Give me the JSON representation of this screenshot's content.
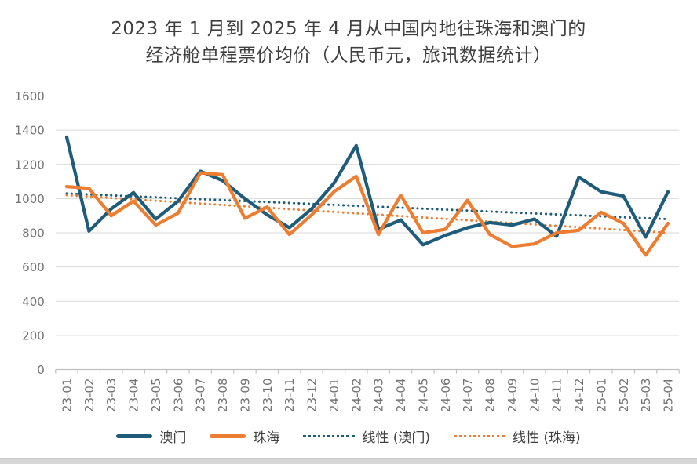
{
  "title": {
    "line1": "2023 年 1 月到 2025 年 4 月从中国内地往珠海和澳门的",
    "line2": "经济舱单程票价均价（人民币元，旅讯数据统计）"
  },
  "colors": {
    "macau": "#1E5C7A",
    "zhuhai": "#ED7D31",
    "grid": "#D9D9D9",
    "axis": "#BFBFBF",
    "axis_text": "#737373",
    "title_text": "#3F3F3F"
  },
  "chart_data": {
    "type": "line",
    "title": "2023 年 1 月到 2025 年 4 月从中国内地往珠海和澳门的经济舱单程票价均价（人民币元，旅讯数据统计）",
    "xlabel": "",
    "ylabel": "",
    "ylim": [
      0,
      1600
    ],
    "ytick_step": 200,
    "yticks": [
      0,
      200,
      400,
      600,
      800,
      1000,
      1200,
      1400,
      1600
    ],
    "grid": true,
    "legend_position": "bottom",
    "categories": [
      "23-01",
      "23-02",
      "23-03",
      "23-04",
      "23-05",
      "23-06",
      "23-07",
      "23-08",
      "23-09",
      "23-10",
      "23-11",
      "23-12",
      "24-01",
      "24-02",
      "24-03",
      "24-04",
      "24-05",
      "24-06",
      "24-07",
      "24-08",
      "24-09",
      "24-10",
      "24-11",
      "24-12",
      "25-01",
      "25-02",
      "25-03",
      "25-04"
    ],
    "series": [
      {
        "name": "澳门",
        "color_key": "macau",
        "style": "solid",
        "values": [
          1360,
          810,
          940,
          1035,
          880,
          985,
          1160,
          1105,
          1000,
          905,
          830,
          940,
          1090,
          1310,
          820,
          875,
          730,
          785,
          830,
          860,
          845,
          880,
          780,
          1125,
          1040,
          1015,
          775,
          1040
        ]
      },
      {
        "name": "珠海",
        "color_key": "zhuhai",
        "style": "solid",
        "values": [
          1070,
          1060,
          900,
          985,
          845,
          915,
          1150,
          1140,
          885,
          950,
          790,
          905,
          1040,
          1130,
          790,
          1020,
          800,
          820,
          990,
          790,
          720,
          735,
          800,
          815,
          920,
          855,
          670,
          855
        ]
      },
      {
        "name": "线性 (澳门)",
        "color_key": "macau",
        "style": "dotted",
        "trend": [
          1030,
          880
        ]
      },
      {
        "name": "线性 (珠海)",
        "color_key": "zhuhai",
        "style": "dotted",
        "trend": [
          1020,
          800
        ]
      }
    ]
  },
  "legend": {
    "items": [
      {
        "label": "澳门",
        "color_key": "macau",
        "style": "solid"
      },
      {
        "label": "珠海",
        "color_key": "zhuhai",
        "style": "solid"
      },
      {
        "label": "线性 (澳门)",
        "color_key": "macau",
        "style": "dotted"
      },
      {
        "label": "线性 (珠海)",
        "color_key": "zhuhai",
        "style": "dotted"
      }
    ]
  }
}
